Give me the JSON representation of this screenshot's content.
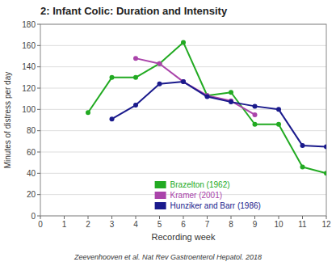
{
  "chart_data": {
    "type": "line",
    "title": "2: Infant Colic: Duration and Intensity",
    "xlabel": "Recording week",
    "ylabel": "Minutes of distress per day",
    "annotations": [
      "Zeevenhooven et al. Nat Rev Gastroenterol Hepatol. 2018"
    ],
    "xlim": [
      0,
      12
    ],
    "ylim": [
      0,
      180
    ],
    "xticks": [
      0,
      1,
      2,
      3,
      4,
      5,
      6,
      7,
      8,
      9,
      10,
      11,
      12
    ],
    "yticks": [
      0,
      20,
      40,
      60,
      80,
      100,
      120,
      140,
      160,
      180
    ],
    "grid": "y",
    "legend": "bottom",
    "series": [
      {
        "name": "Brazelton (1962)",
        "color": "#22aa22",
        "marker": "circle",
        "x": [
          2,
          3,
          4,
          5,
          6,
          7,
          8,
          9,
          10,
          11,
          12
        ],
        "values": [
          97,
          130,
          130,
          143,
          163,
          113,
          116,
          86,
          86,
          46,
          40
        ]
      },
      {
        "name": "Kramer (2001)",
        "color": "#aa44aa",
        "marker": "circle",
        "x": [
          4,
          5,
          6,
          7,
          8,
          9
        ],
        "values": [
          148,
          143,
          126,
          113,
          108,
          95
        ]
      },
      {
        "name": "Hunziker and Barr (1986)",
        "color": "#1a1a8c",
        "marker": "circle",
        "x": [
          3,
          4,
          5,
          6,
          7,
          8,
          9,
          10,
          11,
          12
        ],
        "values": [
          91,
          104,
          124,
          126,
          112,
          107,
          103,
          100,
          66,
          65
        ]
      }
    ]
  }
}
